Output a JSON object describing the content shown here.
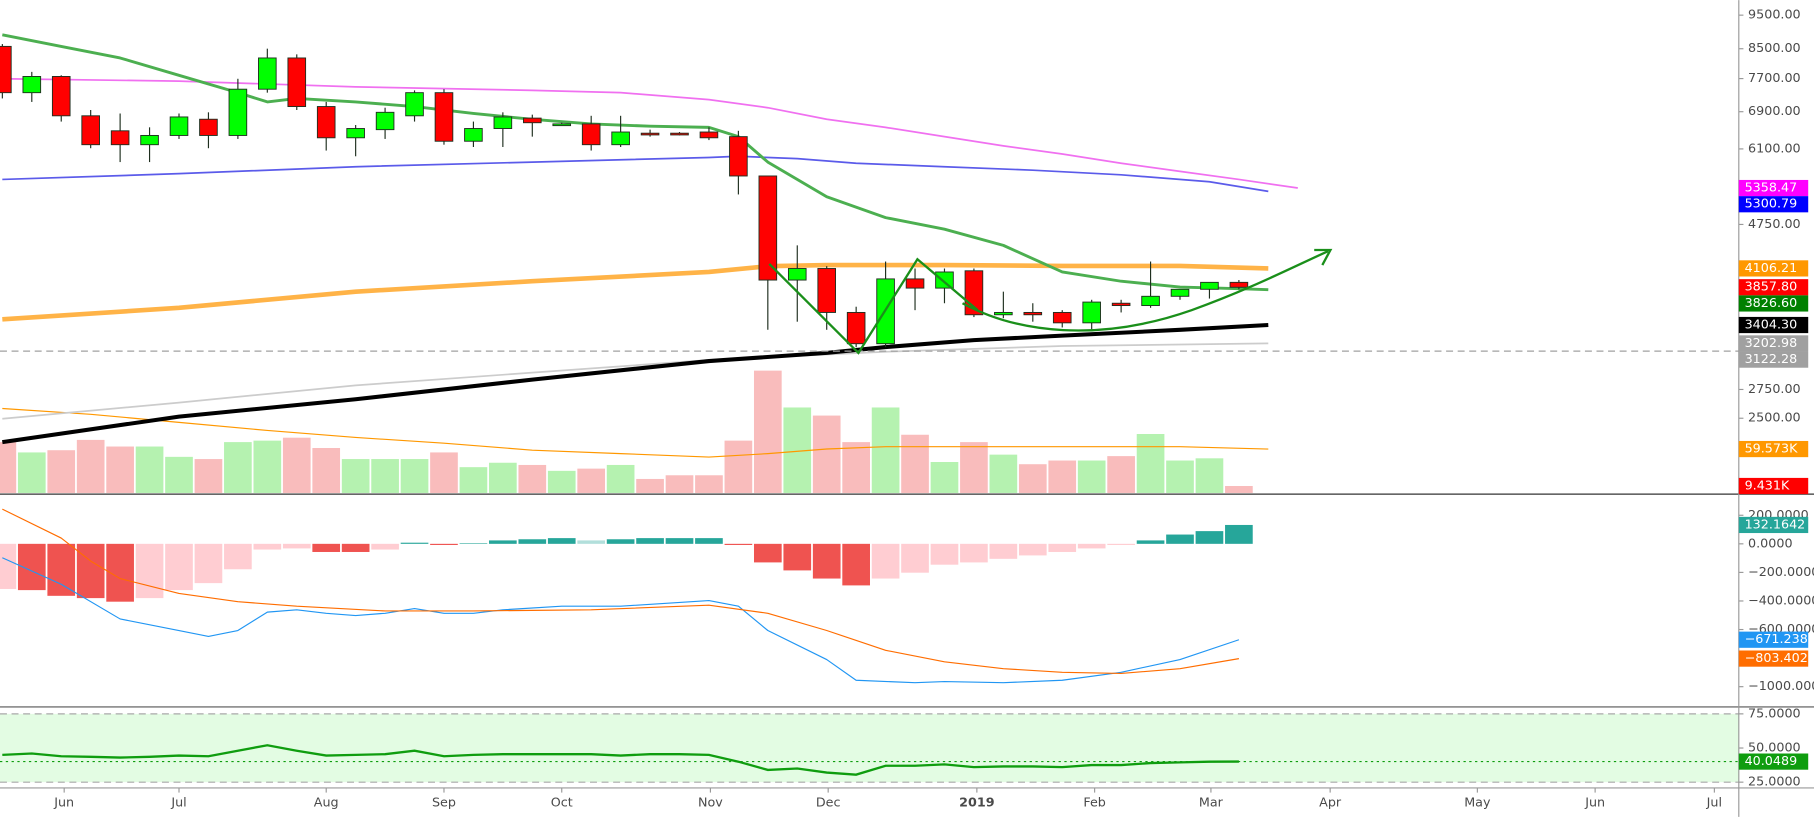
{
  "chart_data": [
    {
      "type": "candlestick",
      "log": true,
      "ylim": [
        1952,
        9985
      ],
      "yticks": [
        {
          "value": 9500,
          "label": "9500.00"
        },
        {
          "value": 8500,
          "label": "8500.00"
        },
        {
          "value": 7700,
          "label": "7700.00"
        },
        {
          "value": 6900,
          "label": "6900.00"
        },
        {
          "value": 6100,
          "label": "6100.00"
        },
        {
          "value": 4750,
          "label": "4750.00"
        },
        {
          "value": 2750,
          "label": "2750.00"
        },
        {
          "value": 2500,
          "label": "2500.00"
        }
      ],
      "xlim": [
        -0.08,
        58.98
      ],
      "xticks": [
        {
          "value": 2.1,
          "label": "Jun"
        },
        {
          "value": 6.0,
          "label": "Jul"
        },
        {
          "value": 11.0,
          "label": "Aug"
        },
        {
          "value": 15.0,
          "label": "Sep"
        },
        {
          "value": 19.0,
          "label": "Oct"
        },
        {
          "value": 24.05,
          "label": "Nov"
        },
        {
          "value": 28.05,
          "label": "Dec"
        },
        {
          "value": 33.1,
          "label": "2019",
          "bold": true
        },
        {
          "value": 37.1,
          "label": "Feb"
        },
        {
          "value": 41.05,
          "label": "Mar"
        },
        {
          "value": 45.1,
          "label": "Apr"
        },
        {
          "value": 50.1,
          "label": "May"
        },
        {
          "value": 54.1,
          "label": "Jun"
        },
        {
          "value": 58.15,
          "label": "Jul"
        }
      ],
      "x": [
        0,
        1,
        2,
        3,
        4,
        5,
        6,
        7,
        8,
        9,
        10,
        11,
        12,
        13,
        14,
        15,
        16,
        17,
        18,
        19,
        20,
        21,
        22,
        23,
        24,
        25,
        26,
        27,
        28,
        29,
        30,
        31,
        32,
        33,
        34,
        35,
        36,
        37,
        38,
        39,
        40,
        41,
        42
      ],
      "open": [
        8566,
        7349,
        7754,
        6807,
        6477,
        6186,
        6378,
        6730,
        6378,
        7434,
        8244,
        7019,
        6329,
        6502,
        6807,
        7349,
        6257,
        6526,
        6755,
        6627,
        6627,
        6186,
        6426,
        6426,
        6451,
        6353,
        5577,
        3951,
        4105,
        3549,
        3200,
        3966,
        3847,
        4074,
        3522,
        3549,
        3549,
        3429,
        3659,
        3631,
        3744,
        3832,
        3921
      ],
      "high": [
        8633,
        7873,
        7785,
        6939,
        6859,
        6552,
        6859,
        6886,
        7695,
        8502,
        8343,
        7127,
        6602,
        6992,
        7405,
        7434,
        6678,
        6886,
        6833,
        6653,
        6807,
        6807,
        6502,
        6451,
        6552,
        6477,
        5577,
        4432,
        4137,
        3617,
        4201,
        4105,
        4105,
        4105,
        3802,
        3659,
        3576,
        3701,
        3701,
        4201,
        3832,
        3921,
        3951
      ],
      "low": [
        7210,
        7127,
        6678,
        6114,
        5840,
        5840,
        6305,
        6114,
        6305,
        7349,
        6939,
        6067,
        5953,
        6305,
        6678,
        6186,
        6139,
        6139,
        6353,
        6602,
        6067,
        6139,
        6353,
        6378,
        6281,
        5246,
        3351,
        3442,
        3351,
        3164,
        3164,
        3576,
        3659,
        3495,
        3482,
        3442,
        3377,
        3351,
        3549,
        3604,
        3701,
        3716,
        3832
      ],
      "close": [
        7349,
        7754,
        6807,
        6186,
        6186,
        6378,
        6781,
        6378,
        7434,
        8244,
        7019,
        6329,
        6526,
        6886,
        7349,
        6257,
        6526,
        6781,
        6653,
        6627,
        6186,
        6451,
        6403,
        6403,
        6329,
        5577,
        3951,
        4105,
        3549,
        3200,
        3966,
        3847,
        4058,
        3522,
        3549,
        3522,
        3429,
        3673,
        3631,
        3744,
        3832,
        3921,
        3857.8
      ],
      "up_color": "#00ff00",
      "down_color": "#ff0000",
      "border_color": "#1f2f1f",
      "lines": [
        {
          "color": "#f070f0",
          "width": 1.5,
          "x": [
            0,
            6,
            12,
            18,
            21,
            24,
            26,
            28,
            30,
            32,
            34,
            36,
            38,
            40,
            42,
            44
          ],
          "values": [
            7695,
            7636,
            7492,
            7405,
            7349,
            7182,
            6992,
            6730,
            6552,
            6353,
            6162,
            5998,
            5818,
            5664,
            5514,
            5358.47
          ]
        },
        {
          "color": "#5b5bea",
          "width": 1.5,
          "x": [
            0,
            6,
            12,
            18,
            24,
            25,
            27,
            29,
            32,
            35,
            38,
            41,
            43
          ],
          "values": [
            5514,
            5620,
            5751,
            5840,
            5930,
            5953,
            5907,
            5818,
            5751,
            5686,
            5599,
            5472,
            5300.79
          ]
        },
        {
          "color": "#ffb347",
          "width": 4,
          "x": [
            0,
            6,
            12,
            18,
            24,
            26,
            28,
            32,
            36,
            40,
            43
          ],
          "values": [
            3469,
            3604,
            3802,
            3936,
            4058,
            4137,
            4153,
            4153,
            4140,
            4140,
            4106.21
          ]
        },
        {
          "color": "#cccccc",
          "width": 1.5,
          "x": [
            0,
            6,
            12,
            18,
            24,
            30,
            36,
            43
          ],
          "values": [
            2495,
            2633,
            2788,
            2908,
            3032,
            3116,
            3176,
            3202.98
          ]
        },
        {
          "color": "#000000",
          "width": 3.5,
          "x": [
            0,
            6,
            12,
            18,
            24,
            28,
            30,
            33,
            36,
            40,
            43
          ],
          "values": [
            2310,
            2514,
            2662,
            2841,
            3021,
            3104,
            3164,
            3238,
            3287,
            3351,
            3404.3
          ]
        },
        {
          "color": "#4caf50",
          "width": 2.5,
          "x": [
            0,
            2,
            4,
            6,
            8,
            9,
            10,
            12,
            14,
            16,
            18,
            20,
            22,
            24,
            25,
            26,
            28,
            30,
            32,
            34,
            36,
            38,
            40,
            42,
            43
          ],
          "values": [
            8901,
            8566,
            8244,
            7784,
            7349,
            7127,
            7210,
            7127,
            7019,
            6859,
            6730,
            6627,
            6576,
            6552,
            6353,
            5840,
            5206,
            4859,
            4676,
            4432,
            4058,
            3936,
            3861,
            3840,
            3826.6
          ]
        }
      ],
      "markers": [
        {
          "value": 5358.47,
          "color": "#ff00ff"
        },
        {
          "value": 5300.79,
          "color": "#0000ff"
        },
        {
          "value": 4106.21,
          "color": "#ff9800"
        },
        {
          "value": 3857.8,
          "label": "3857.80",
          "color": "#ff0000"
        },
        {
          "value": 3826.6,
          "label": "3826.60",
          "color": "#008000"
        },
        {
          "value": 3404.3,
          "label": "3404.30",
          "color": "#000000"
        },
        {
          "value": 3202.98,
          "color": "#a0a0a0"
        },
        {
          "value": 3122.28,
          "color": "#a0a0a0",
          "line": "dashed"
        }
      ]
    },
    {
      "type": "bar",
      "ylim": [
        0,
        668.8
      ],
      "values": [
        69,
        55,
        58,
        72,
        63,
        63,
        49,
        46,
        69,
        71,
        75,
        61,
        46,
        46,
        46,
        55,
        35,
        41,
        38,
        30,
        33,
        38,
        19,
        24,
        24,
        71,
        166,
        116,
        105,
        69,
        116,
        79,
        42,
        69,
        52,
        39,
        44,
        44,
        50,
        80,
        44,
        47,
        9.431
      ],
      "up_color": "#b5f2b0",
      "down_color": "#f9bcbc",
      "lines": [
        {
          "color": "#ff9800",
          "width": 1,
          "x": [
            0,
            3,
            6,
            9,
            12,
            15,
            18,
            21,
            24,
            26,
            28,
            30,
            35,
            40,
            43
          ],
          "values": [
            114.6,
            106.8,
            95.8,
            84.8,
            75.4,
            67.5,
            58.1,
            53.4,
            48.7,
            53.4,
            59.7,
            62.8,
            62.8,
            62.8,
            59.573
          ]
        }
      ],
      "markers": [
        {
          "value": 59.573,
          "label": "59.573K",
          "color": "#ff9800"
        },
        {
          "value": 9.431,
          "label": "9.431K",
          "color": "#ff0000"
        }
      ]
    },
    {
      "type": "macd",
      "ylim": [
        -1134,
        340
      ],
      "yticks": [
        {
          "value": 200,
          "label": "200.0000"
        },
        {
          "value": 0,
          "label": "0.0000"
        },
        {
          "value": -200,
          "label": "−200.0000"
        },
        {
          "value": -400,
          "label": "−400.0000"
        },
        {
          "value": -600,
          "label": "−600.0000"
        },
        {
          "value": -1000,
          "label": "−1000.0000"
        }
      ],
      "histogram": [
        -316,
        -324,
        -364,
        -380,
        -405,
        -380,
        -324,
        -275,
        -178,
        -40,
        -32,
        -57,
        -57,
        -40,
        8,
        -8,
        4,
        24,
        32,
        40,
        24,
        32,
        40,
        40,
        40,
        -8,
        -130,
        -186,
        -243,
        -291,
        -243,
        -202,
        -146,
        -130,
        -105,
        -81,
        -57,
        -32,
        -8,
        24,
        65,
        89,
        132.1642
      ],
      "colors": {
        "pos_up": "#26a69a",
        "pos_down": "#b2dfdb",
        "neg_down": "#ef5350",
        "neg_up": "#ffcdd2"
      },
      "lines": [
        {
          "color": "#2196f3",
          "width": 1,
          "x": [
            0,
            2,
            4,
            6,
            7,
            8,
            9,
            10,
            11,
            12,
            13,
            14,
            15,
            16,
            17,
            19,
            21,
            24,
            25,
            26,
            28,
            29,
            31,
            32,
            34,
            36,
            38,
            40,
            42
          ],
          "values": [
            -97,
            -283,
            -526,
            -607,
            -648,
            -607,
            -478,
            -462,
            -486,
            -502,
            -486,
            -453,
            -486,
            -486,
            -462,
            -437,
            -437,
            -397,
            -437,
            -607,
            -810,
            -955,
            -972,
            -964,
            -972,
            -955,
            -899,
            -810,
            -671.2383
          ]
        },
        {
          "color": "#ff6d00",
          "width": 1,
          "x": [
            0,
            2,
            3,
            4,
            6,
            8,
            10,
            13,
            16,
            20,
            24,
            26,
            28,
            30,
            32,
            34,
            36,
            38,
            40,
            42
          ],
          "values": [
            243,
            40,
            -121,
            -243,
            -348,
            -405,
            -437,
            -470,
            -470,
            -462,
            -429,
            -486,
            -607,
            -745,
            -826,
            -874,
            -899,
            -907,
            -874,
            -803.4025
          ]
        }
      ],
      "markers": [
        {
          "value": 132.1642,
          "color": "#26a69a"
        },
        {
          "value": -671.2383,
          "label": "−671.2383",
          "color": "#2196f3"
        },
        {
          "value": -803.4025,
          "label": "−803.4025",
          "color": "#ff6d00"
        }
      ]
    },
    {
      "type": "line",
      "ylim": [
        21.6,
        79.2
      ],
      "yticks": [
        {
          "value": 75,
          "label": "75.0000"
        },
        {
          "value": 50,
          "label": "50.0000"
        },
        {
          "value": 25,
          "label": "25.0000"
        }
      ],
      "band_color": "#e3fce3",
      "band_line_color": "#a8a8a8",
      "color": "#0f9d0f",
      "values": [
        45,
        46,
        44,
        43.5,
        43,
        43.5,
        44.5,
        44,
        48,
        52,
        48,
        44.5,
        45,
        45.5,
        48,
        44,
        45,
        45.5,
        45.5,
        45.5,
        45.5,
        44.5,
        45.5,
        45.5,
        45,
        40,
        34,
        35,
        32,
        30.5,
        37,
        37,
        38,
        36,
        36.5,
        36.5,
        36,
        37.5,
        37.5,
        39,
        39.5,
        40,
        40.0489
      ],
      "markers": [
        {
          "value": 40.0489,
          "color": "#0f9d0f",
          "line": "dotted"
        }
      ]
    }
  ]
}
